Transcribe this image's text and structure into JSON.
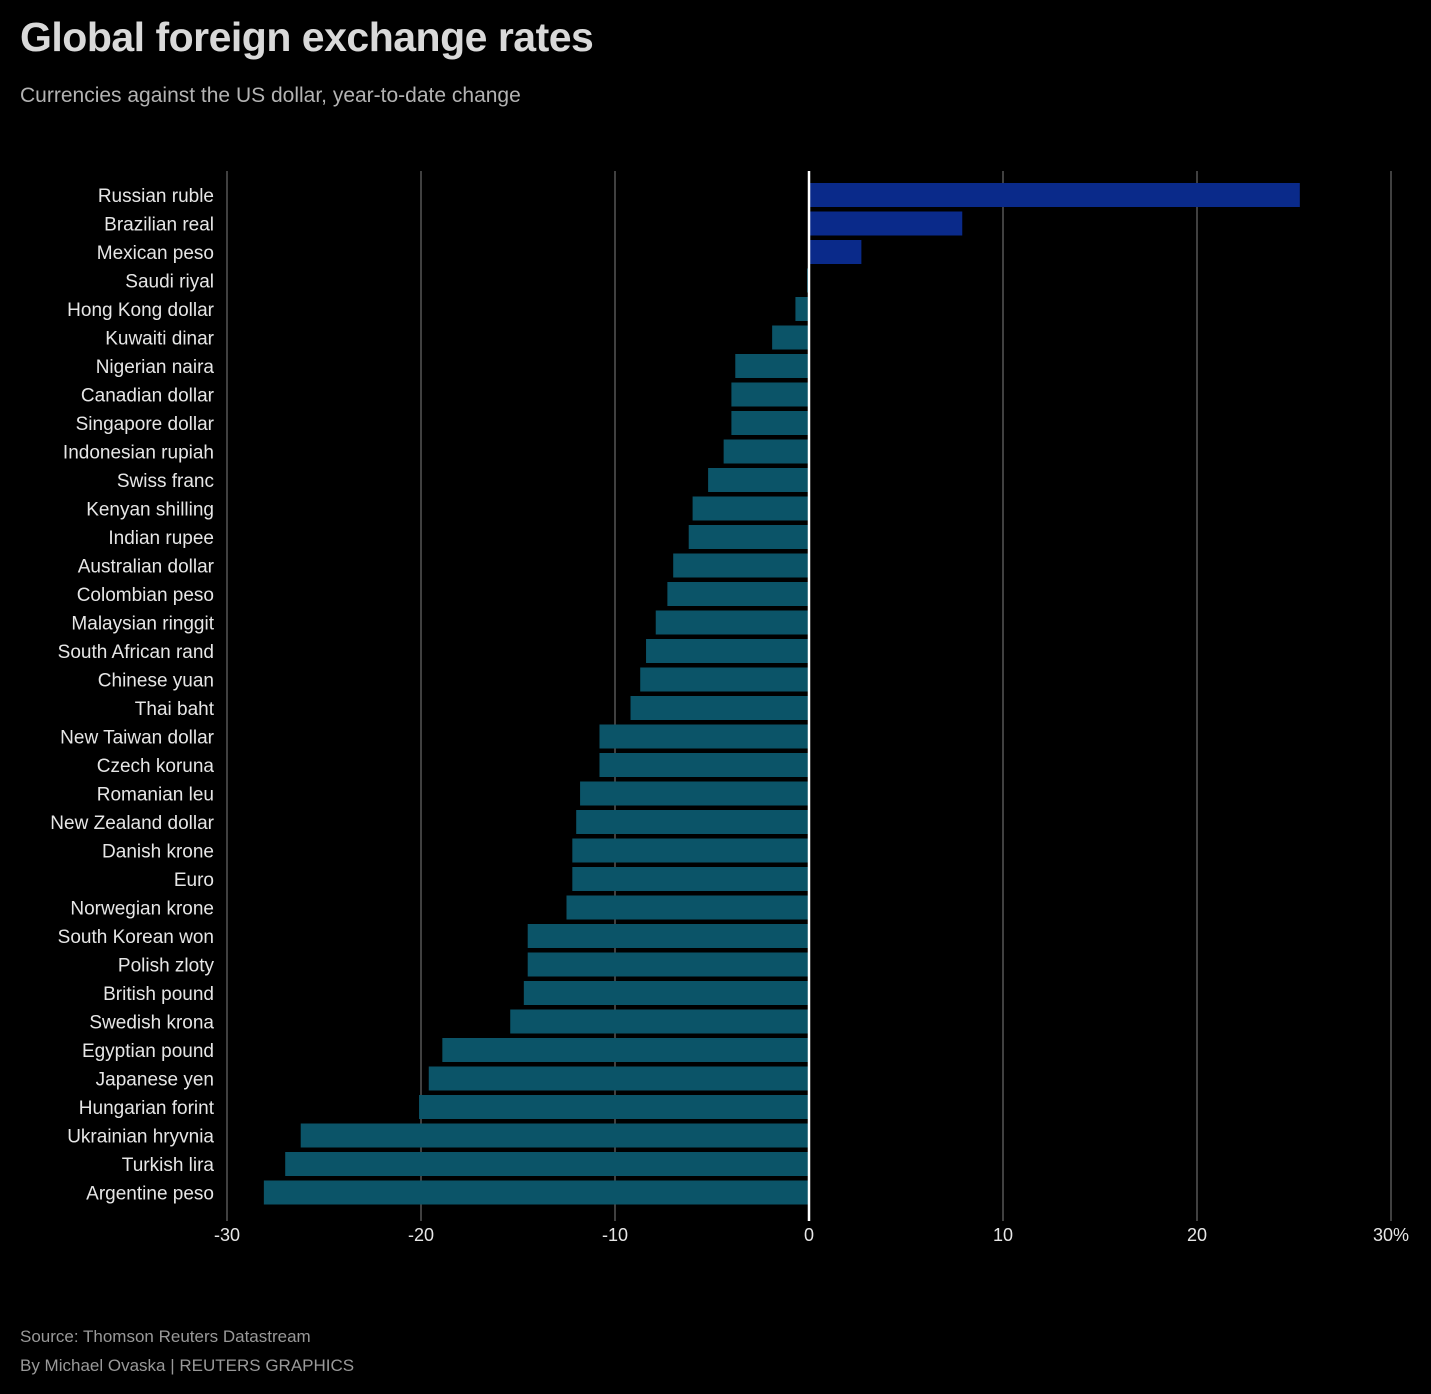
{
  "title": "Global foreign exchange rates",
  "subtitle": "Currencies against the US dollar, year-to-date change",
  "footer": {
    "source": "Source: Thomson Reuters Datastream",
    "byline": "By Michael Ovaska | REUTERS GRAPHICS"
  },
  "colors": {
    "positive": "#0a2a8a",
    "negative": "#0b5468",
    "background": "#000000",
    "grid": "#6b6b6b",
    "zero_line": "#ffffff",
    "label_text": "#e6e6e6"
  },
  "chart_data": {
    "type": "bar",
    "orientation": "horizontal",
    "title": "Global foreign exchange rates",
    "subtitle": "Currencies against the US dollar, year-to-date change",
    "xlabel": "",
    "ylabel": "",
    "xlim": [
      -30,
      30
    ],
    "x_ticks": [
      -30,
      -20,
      -10,
      0,
      10,
      20,
      30
    ],
    "x_tick_labels": [
      "-30",
      "-20",
      "-10",
      "0",
      "10",
      "20",
      "30%"
    ],
    "grid": true,
    "categories": [
      "Russian ruble",
      "Brazilian real",
      "Mexican peso",
      "Saudi riyal",
      "Hong Kong dollar",
      "Kuwaiti dinar",
      "Nigerian naira",
      "Canadian dollar",
      "Singapore dollar",
      "Indonesian rupiah",
      "Swiss franc",
      "Kenyan shilling",
      "Indian rupee",
      "Australian dollar",
      "Colombian peso",
      "Malaysian ringgit",
      "South African rand",
      "Chinese yuan",
      "Thai baht",
      "New Taiwan dollar",
      "Czech koruna",
      "Romanian leu",
      "New Zealand dollar",
      "Danish krone",
      "Euro",
      "Norwegian krone",
      "South Korean won",
      "Polish zloty",
      "British pound",
      "Swedish krona",
      "Egyptian pound",
      "Japanese yen",
      "Hungarian forint",
      "Ukrainian hryvnia",
      "Turkish lira",
      "Argentine peso"
    ],
    "values": [
      25.3,
      7.9,
      2.7,
      -0.1,
      -0.7,
      -1.9,
      -3.8,
      -4.0,
      -4.0,
      -4.4,
      -5.2,
      -6.0,
      -6.2,
      -7.0,
      -7.3,
      -7.9,
      -8.4,
      -8.7,
      -9.2,
      -10.8,
      -10.8,
      -11.8,
      -12.0,
      -12.2,
      -12.2,
      -12.5,
      -14.5,
      -14.5,
      -14.7,
      -15.4,
      -18.9,
      -19.6,
      -20.1,
      -26.2,
      -27.0,
      -28.1
    ]
  }
}
